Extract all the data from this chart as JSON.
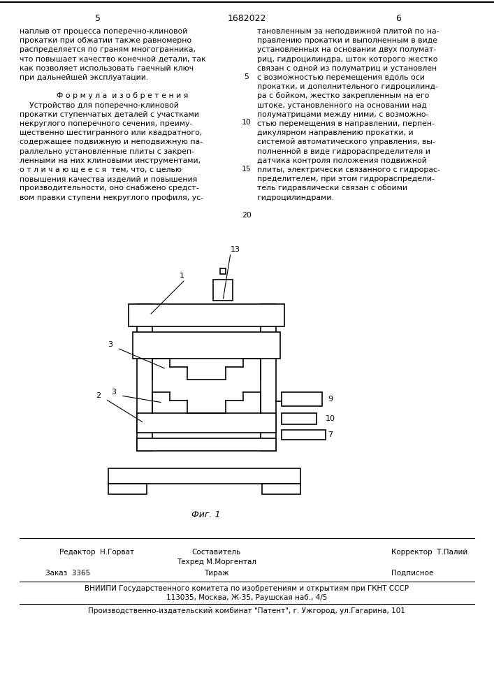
{
  "page_number_left": "5",
  "patent_number": "1682022",
  "page_number_right": "6",
  "line_numbers": [
    "5",
    "10",
    "15",
    "20"
  ],
  "left_column_text": [
    "наплыв от процесса поперечно-клиновой",
    "прокатки при обжатии также равномерно",
    "распределяется по граням многогранника,",
    "что повышает качество конечной детали, так",
    "как позволяет использовать гаечный ключ",
    "при дальнейшей эксплуатации.",
    "",
    "Ф о р м у л а  и з о б р е т е н и я",
    "    Устройство для поперечно-клиновой",
    "прокатки ступенчатых деталей с участками",
    "некруглого поперечного сечения, преиму-",
    "щественно шестигранного или квадратного,",
    "содержащее подвижную и неподвижную па-",
    "раллельно установленные плиты с закреп-",
    "ленными на них клиновыми инструментами,",
    "о т л и ч а ю щ е е с я  тем, что, с целью",
    "повышения качества изделий и повышения",
    "производительности, оно снабжено средст-",
    "вом правки ступени некруглого профиля, ус-"
  ],
  "right_column_text": [
    "тановленным за неподвижной плитой по на-",
    "правлению прокатки и выполненным в виде",
    "установленных на основании двух полумат-",
    "риц, гидроцилиндра, шток которого жестко",
    "связан с одной из полуматриц и установлен",
    "с возможностью перемещения вдоль оси",
    "прокатки, и дополнительного гидроцилинд-",
    "ра с бойком, жестко закрепленным на его",
    "штоке, установленного на основании над",
    "полуматрицами между ними, с возможно-",
    "стью перемещения в направлении, перпен-",
    "дикулярном направлению прокатки, и",
    "системой автоматического управления, вы-",
    "полненной в виде гидрораспределителя и",
    "датчика контроля положения подвижной",
    "плиты, электрически связанного с гидрорас-",
    "пределителем, при этом гидрораспредели-",
    "тель гидравлически связан с обоими",
    "гидроцилиндрами."
  ],
  "fig_label": "Фиг. 1",
  "editor_label": "Редактор",
  "editor_name": "Н.Горват",
  "composer_label": "Составитель",
  "composer_name": "Техред М.Моргентал",
  "corrector_label": "Корректор",
  "corrector_name": "Т.Палий",
  "order_label": "Заказ",
  "order_number": "3365",
  "circulation_label": "Тираж",
  "subscription_label": "Подписное",
  "vnipi_line1": "ВНИИПИ Государственного комитета по изобретениям и открытиям при ГКНТ СССР",
  "vnipi_line2": "113035, Москва, Ж-35, Раушская наб., 4/5",
  "publisher_line": "Производственно-издательский комбинат \"Патент\", г. Ужгород, ул.Гагарина, 101",
  "bg_color": "#ffffff",
  "text_color": "#000000"
}
